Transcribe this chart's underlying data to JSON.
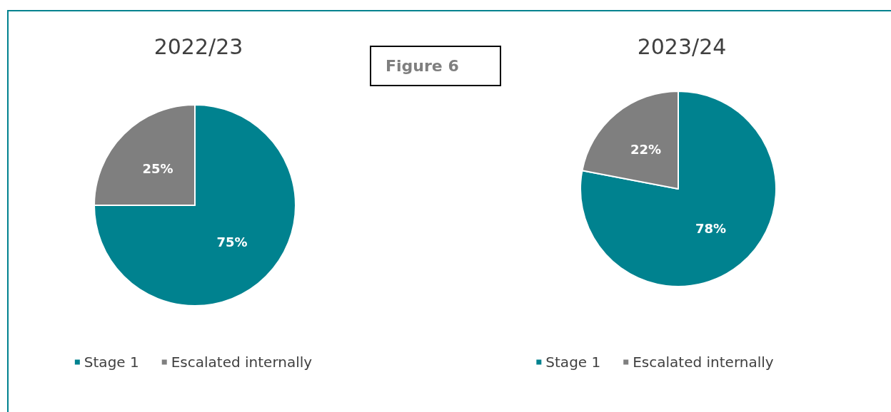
{
  "chart_data": [
    {
      "type": "pie",
      "title": "2022/23",
      "categories": [
        "Stage 1",
        "Escalated internally"
      ],
      "values": [
        75,
        25
      ],
      "colors": [
        "#00828f",
        "#7f7f7f"
      ],
      "value_labels": [
        "75%",
        "25%"
      ],
      "legend": "bottom",
      "annotations": [
        "Figure 6"
      ]
    },
    {
      "type": "pie",
      "title": "2023/24",
      "categories": [
        "Stage 1",
        "Escalated internally"
      ],
      "values": [
        78,
        22
      ],
      "colors": [
        "#00828f",
        "#7f7f7f"
      ],
      "value_labels": [
        "78%",
        "22%"
      ],
      "legend": "bottom"
    }
  ]
}
